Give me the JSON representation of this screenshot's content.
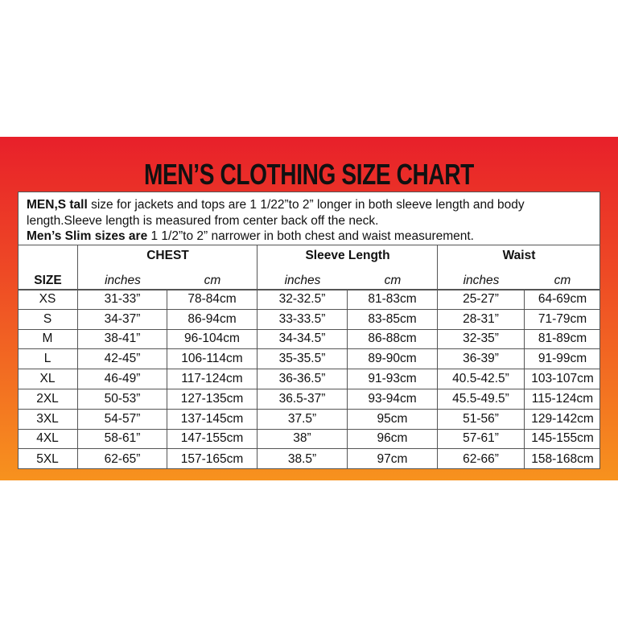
{
  "title": "MEN’S CLOTHING SIZE CHART",
  "notes": [
    {
      "bold": "MEN,S tall",
      "text": "size for jackets and tops are 1 1/22”to 2” longer in both sleeve length and body length.Sleeve length is measured from center back off the neck."
    },
    {
      "bold": "Men’s Slim sizes are",
      "text": " 1 1/2”to 2” narrower in both chest and waist measurement."
    }
  ],
  "table": {
    "size_header": "SIZE",
    "groups": [
      "CHEST",
      "Sleeve Length",
      "Waist"
    ],
    "units": [
      "inches",
      "cm",
      "inches",
      "cm",
      "inches",
      "cm"
    ],
    "rows": [
      [
        "XS",
        "31-33”",
        "78-84cm",
        "32-32.5”",
        "81-83cm",
        "25-27”",
        "64-69cm"
      ],
      [
        "S",
        "34-37”",
        "86-94cm",
        "33-33.5”",
        "83-85cm",
        "28-31”",
        "71-79cm"
      ],
      [
        "M",
        "38-41”",
        "96-104cm",
        "34-34.5”",
        "86-88cm",
        "32-35”",
        "81-89cm"
      ],
      [
        "L",
        "42-45”",
        "106-114cm",
        "35-35.5”",
        "89-90cm",
        "36-39”",
        "91-99cm"
      ],
      [
        "XL",
        "46-49”",
        "117-124cm",
        "36-36.5”",
        "91-93cm",
        "40.5-42.5”",
        "103-107cm"
      ],
      [
        "2XL",
        "50-53”",
        "127-135cm",
        "36.5-37”",
        "93-94cm",
        "45.5-49.5”",
        "115-124cm"
      ],
      [
        "3XL",
        "54-57”",
        "137-145cm",
        "37.5”",
        "95cm",
        "51-56”",
        "129-142cm"
      ],
      [
        "4XL",
        "58-61”",
        "147-155cm",
        "38”",
        "96cm",
        "57-61”",
        "145-155cm"
      ],
      [
        "5XL",
        "62-65”",
        "157-165cm",
        "38.5”",
        "97cm",
        "62-66”",
        "158-168cm"
      ]
    ]
  }
}
